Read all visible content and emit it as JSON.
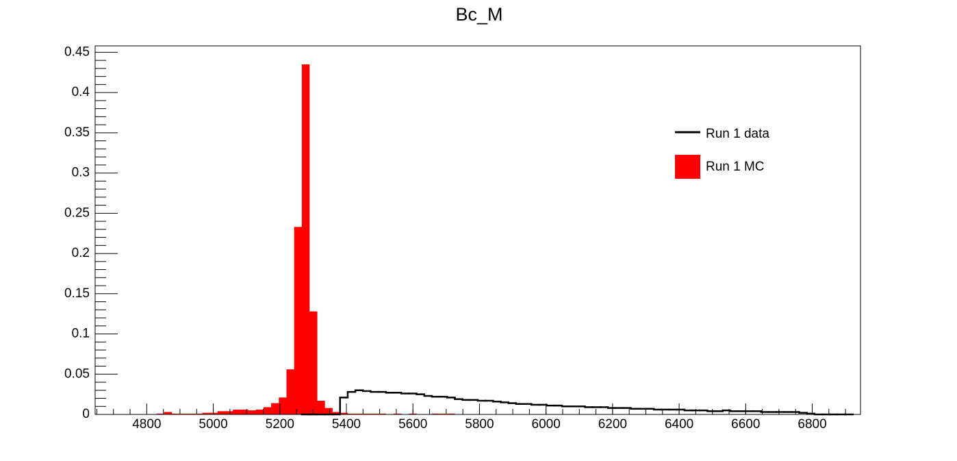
{
  "chart_data": {
    "type": "histogram",
    "title": "Bc_M",
    "bins": [
      4645,
      4668,
      4691,
      4714,
      4737,
      4760,
      4783,
      4806,
      4829,
      4852,
      4875,
      4898,
      4921,
      4944,
      4967,
      4990,
      5013,
      5036,
      5059,
      5082,
      5105,
      5128,
      5151,
      5174,
      5197,
      5220,
      5243,
      5266,
      5289,
      5312,
      5335,
      5358,
      5381,
      5404,
      5427,
      5450,
      5473,
      5496,
      5519,
      5542,
      5565,
      5588,
      5611,
      5634,
      5657,
      5680,
      5703,
      5726,
      5749,
      5772,
      5795,
      5818,
      5841,
      5864,
      5887,
      5910,
      5933,
      5956,
      5979,
      6002,
      6025,
      6048,
      6071,
      6094,
      6117,
      6140,
      6163,
      6186,
      6209,
      6232,
      6255,
      6278,
      6301,
      6324,
      6347,
      6370,
      6393,
      6416,
      6439,
      6462,
      6485,
      6508,
      6531,
      6554,
      6577,
      6600,
      6623,
      6646,
      6669,
      6692,
      6715,
      6738,
      6761,
      6784,
      6807,
      6830,
      6853,
      6876,
      6899,
      6922,
      6945
    ],
    "series": [
      {
        "name": "Run 1 data",
        "color": "#000000",
        "style": "step",
        "values": [
          null,
          null,
          null,
          null,
          null,
          null,
          null,
          null,
          null,
          null,
          null,
          null,
          null,
          null,
          null,
          null,
          null,
          null,
          null,
          null,
          null,
          null,
          null,
          null,
          null,
          null,
          null,
          0,
          0,
          0,
          0,
          0,
          0.021,
          0.028,
          0.03,
          0.029,
          0.028,
          0.028,
          0.027,
          0.027,
          0.026,
          0.026,
          0.025,
          0.023,
          0.022,
          0.022,
          0.021,
          0.019,
          0.018,
          0.018,
          0.017,
          0.017,
          0.016,
          0.015,
          0.014,
          0.013,
          0.013,
          0.012,
          0.012,
          0.011,
          0.011,
          0.01,
          0.01,
          0.01,
          0.009,
          0.009,
          0.009,
          0.008,
          0.008,
          0.008,
          0.007,
          0.007,
          0.007,
          0.006,
          0.006,
          0.006,
          0.006,
          0.005,
          0.005,
          0.005,
          0.004,
          0.004,
          0.005,
          0.004,
          0.004,
          0.004,
          0.004,
          0.003,
          0.003,
          0.003,
          0.003,
          0.003,
          0.002,
          0.001,
          0,
          0,
          0,
          0,
          0,
          null
        ]
      },
      {
        "name": "Run 1 MC",
        "color": "#ff0000",
        "style": "fill",
        "values": [
          0,
          0,
          0,
          0,
          0,
          0,
          0,
          0,
          0.001,
          0.003,
          0.001,
          0.001,
          0.001,
          0.001,
          0.002,
          0.002,
          0.004,
          0.004,
          0.006,
          0.006,
          0.005,
          0.006,
          0.009,
          0.014,
          0.021,
          0.056,
          0.233,
          0.435,
          0.128,
          0.017,
          0.008,
          0.003,
          0.002,
          0.001,
          0.001,
          0.001,
          0.001,
          0.001,
          0,
          0.001,
          0,
          0.001,
          0,
          0,
          0.001,
          0.001,
          0.001,
          0,
          0,
          0,
          0,
          0,
          0,
          0,
          0,
          0,
          0,
          0,
          0,
          0,
          0,
          0,
          0,
          0,
          0,
          0,
          0,
          0,
          0,
          0,
          0,
          0,
          0,
          0,
          0,
          0,
          0,
          0,
          0,
          0,
          0,
          0,
          0,
          0,
          0,
          0,
          0,
          0,
          0,
          0,
          0,
          0,
          0,
          0,
          0,
          0,
          0,
          0,
          0,
          0
        ]
      }
    ],
    "xlim": [
      4645,
      6945
    ],
    "xticks": [
      4800,
      5000,
      5200,
      5400,
      5600,
      5800,
      6000,
      6200,
      6400,
      6600,
      6800
    ],
    "ylim": [
      0,
      0.458
    ],
    "yticks": [
      0,
      0.05,
      0.1,
      0.15,
      0.2,
      0.25,
      0.3,
      0.35,
      0.4,
      0.45
    ],
    "legend": "top-right"
  }
}
